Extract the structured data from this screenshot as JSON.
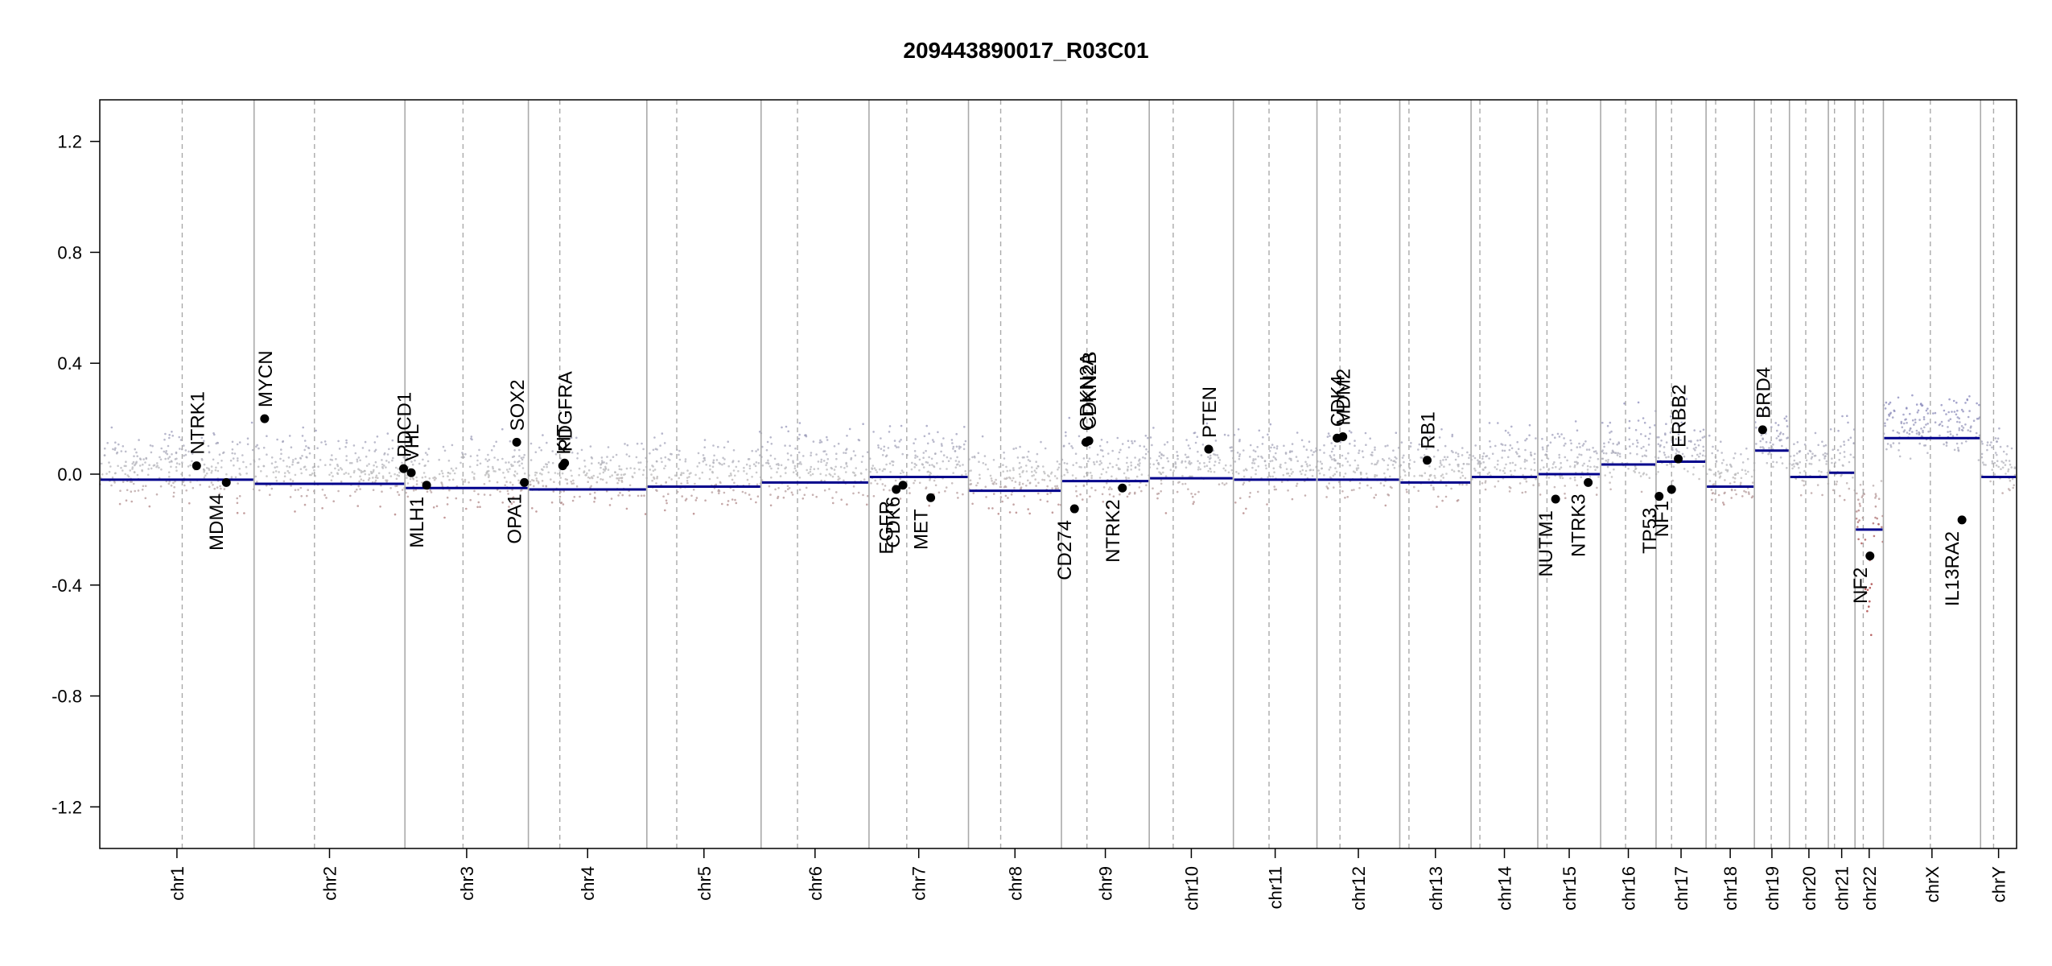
{
  "chart_data": {
    "type": "scatter",
    "title": "209443890017_R03C01",
    "xlabel": "",
    "ylabel": "",
    "ylim": [
      -1.35,
      1.35
    ],
    "y_ticks": [
      1.2,
      0.8,
      0.4,
      0.0,
      -0.4,
      -0.8,
      -1.2
    ],
    "y_tick_labels": [
      "1.2",
      "0.8",
      "0.4",
      "0.0",
      "-0.4",
      "-0.8",
      "-1.2"
    ],
    "grid": false,
    "colors": {
      "segment": "#00008b",
      "gain_points": "#8888bb",
      "loss_points": "#a03030",
      "neutral_points": "#bbbbbb",
      "chromosome_divider": "#aaaaaa",
      "centromere": "#aaaaaa",
      "gene_marker": "#000000"
    },
    "chromosomes": [
      {
        "name": "chr1",
        "start": 0.0,
        "end": 0.0805,
        "centromere": 0.043,
        "segment": -0.02
      },
      {
        "name": "chr2",
        "start": 0.0805,
        "end": 0.1592,
        "centromere": 0.112,
        "segment": -0.035
      },
      {
        "name": "chr3",
        "start": 0.1592,
        "end": 0.2236,
        "centromere": 0.1895,
        "segment": -0.05
      },
      {
        "name": "chr4",
        "start": 0.2236,
        "end": 0.2854,
        "centromere": 0.24,
        "segment": -0.055
      },
      {
        "name": "chr5",
        "start": 0.2854,
        "end": 0.345,
        "centromere": 0.301,
        "segment": -0.045
      },
      {
        "name": "chr6",
        "start": 0.345,
        "end": 0.4013,
        "centromere": 0.364,
        "segment": -0.03
      },
      {
        "name": "chr7",
        "start": 0.4013,
        "end": 0.4532,
        "centromere": 0.421,
        "segment": -0.01
      },
      {
        "name": "chr8",
        "start": 0.4532,
        "end": 0.5017,
        "centromere": 0.47,
        "segment": -0.06
      },
      {
        "name": "chr9",
        "start": 0.5017,
        "end": 0.5475,
        "centromere": 0.515,
        "segment": -0.025
      },
      {
        "name": "chr10",
        "start": 0.5475,
        "end": 0.5914,
        "centromere": 0.56,
        "segment": -0.015
      },
      {
        "name": "chr11",
        "start": 0.5914,
        "end": 0.635,
        "centromere": 0.61,
        "segment": -0.02
      },
      {
        "name": "chr12",
        "start": 0.635,
        "end": 0.6782,
        "centromere": 0.647,
        "segment": -0.02
      },
      {
        "name": "chr13",
        "start": 0.6782,
        "end": 0.7154,
        "centromere": 0.683,
        "segment": -0.03
      },
      {
        "name": "chr14",
        "start": 0.7154,
        "end": 0.7502,
        "centromere": 0.72,
        "segment": -0.01
      },
      {
        "name": "chr15",
        "start": 0.7502,
        "end": 0.783,
        "centromere": 0.755,
        "segment": 0.0
      },
      {
        "name": "chr16",
        "start": 0.783,
        "end": 0.8119,
        "centromere": 0.796,
        "segment": 0.035
      },
      {
        "name": "chr17",
        "start": 0.8119,
        "end": 0.838,
        "centromere": 0.82,
        "segment": 0.045
      },
      {
        "name": "chr18",
        "start": 0.838,
        "end": 0.8632,
        "centromere": 0.843,
        "segment": -0.045
      },
      {
        "name": "chr19",
        "start": 0.8632,
        "end": 0.8815,
        "centromere": 0.872,
        "segment": 0.085
      },
      {
        "name": "chr20",
        "start": 0.8815,
        "end": 0.9018,
        "centromere": 0.89,
        "segment": -0.01
      },
      {
        "name": "chr21",
        "start": 0.9018,
        "end": 0.9157,
        "centromere": 0.905,
        "segment": 0.005
      },
      {
        "name": "chr22",
        "start": 0.9157,
        "end": 0.9305,
        "centromere": 0.92,
        "segment": -0.2
      },
      {
        "name": "chrX",
        "start": 0.9305,
        "end": 0.9812,
        "centromere": 0.955,
        "segment": 0.13
      },
      {
        "name": "chrY",
        "start": 0.9812,
        "end": 1.0,
        "centromere": 0.988,
        "segment": -0.01
      }
    ],
    "genes": [
      {
        "name": "NTRK1",
        "x": 0.0505,
        "y": 0.03
      },
      {
        "name": "MDM4",
        "x": 0.066,
        "y": -0.03
      },
      {
        "name": "MYCN",
        "x": 0.086,
        "y": 0.2
      },
      {
        "name": "PDCD1",
        "x": 0.1585,
        "y": 0.02
      },
      {
        "name": "VHL",
        "x": 0.1625,
        "y": 0.005
      },
      {
        "name": "MLH1",
        "x": 0.1705,
        "y": -0.04
      },
      {
        "name": "SOX2",
        "x": 0.2175,
        "y": 0.115
      },
      {
        "name": "OPA1",
        "x": 0.2215,
        "y": -0.03
      },
      {
        "name": "KIT",
        "x": 0.2415,
        "y": 0.03
      },
      {
        "name": "PDGFRA",
        "x": 0.2425,
        "y": 0.04
      },
      {
        "name": "EGFR",
        "x": 0.4155,
        "y": -0.055
      },
      {
        "name": "CDK6",
        "x": 0.419,
        "y": -0.04
      },
      {
        "name": "MET",
        "x": 0.4335,
        "y": -0.085
      },
      {
        "name": "CD274",
        "x": 0.5085,
        "y": -0.125
      },
      {
        "name": "CDKN2A",
        "x": 0.5145,
        "y": 0.115
      },
      {
        "name": "CDKN2B",
        "x": 0.516,
        "y": 0.12
      },
      {
        "name": "NTRK2",
        "x": 0.5335,
        "y": -0.05
      },
      {
        "name": "PTEN",
        "x": 0.5785,
        "y": 0.09
      },
      {
        "name": "CDK4",
        "x": 0.6455,
        "y": 0.13
      },
      {
        "name": "MDM2",
        "x": 0.6485,
        "y": 0.135
      },
      {
        "name": "RB1",
        "x": 0.6925,
        "y": 0.05
      },
      {
        "name": "NUTM1",
        "x": 0.7595,
        "y": -0.09
      },
      {
        "name": "NTRK3",
        "x": 0.7765,
        "y": -0.03
      },
      {
        "name": "TP53",
        "x": 0.8135,
        "y": -0.08
      },
      {
        "name": "NF1",
        "x": 0.82,
        "y": -0.055
      },
      {
        "name": "ERBB2",
        "x": 0.8235,
        "y": 0.055
      },
      {
        "name": "BRD4",
        "x": 0.8675,
        "y": 0.16
      },
      {
        "name": "NF2",
        "x": 0.9235,
        "y": -0.295
      },
      {
        "name": "IL13RA2",
        "x": 0.9715,
        "y": -0.165
      }
    ]
  }
}
